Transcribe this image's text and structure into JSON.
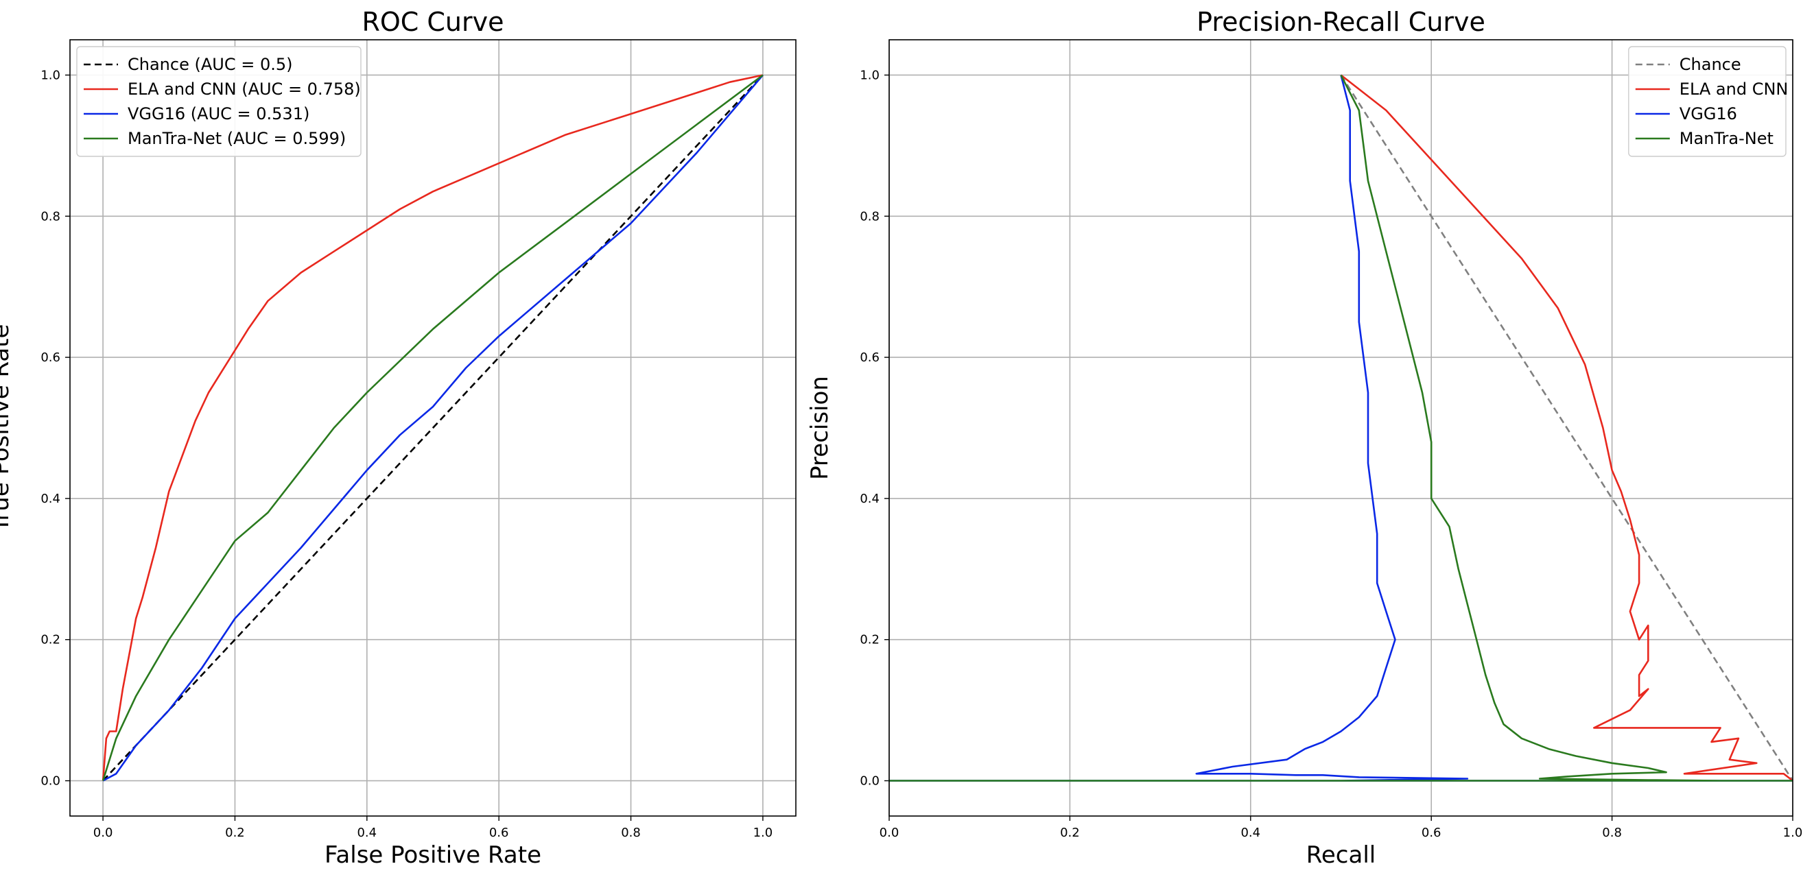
{
  "chart_data": [
    {
      "type": "line",
      "title": "ROC Curve",
      "xlabel": "False Positive Rate",
      "ylabel": "True Positive Rate",
      "xlim": [
        -0.05,
        1.05
      ],
      "ylim": [
        -0.05,
        1.05
      ],
      "xticks": [
        "0.0",
        "0.2",
        "0.4",
        "0.6",
        "0.8",
        "1.0"
      ],
      "yticks": [
        "0.0",
        "0.2",
        "0.4",
        "0.6",
        "0.8",
        "1.0"
      ],
      "grid": true,
      "legend_position": "top-left",
      "series": [
        {
          "name": "Chance (AUC = 0.5)",
          "color": "#000000",
          "dashed": true,
          "x": [
            0,
            1
          ],
          "y": [
            0,
            1
          ]
        },
        {
          "name": "ELA and CNN (AUC = 0.758)",
          "color": "#e8281e",
          "dashed": false,
          "x": [
            0,
            0.005,
            0.01,
            0.02,
            0.03,
            0.04,
            0.05,
            0.06,
            0.08,
            0.1,
            0.12,
            0.14,
            0.16,
            0.18,
            0.2,
            0.22,
            0.25,
            0.3,
            0.35,
            0.4,
            0.45,
            0.5,
            0.55,
            0.6,
            0.7,
            0.8,
            0.9,
            0.95,
            1.0
          ],
          "y": [
            0,
            0.06,
            0.07,
            0.07,
            0.13,
            0.18,
            0.23,
            0.26,
            0.33,
            0.41,
            0.46,
            0.51,
            0.55,
            0.58,
            0.61,
            0.64,
            0.68,
            0.72,
            0.75,
            0.78,
            0.81,
            0.835,
            0.855,
            0.875,
            0.915,
            0.945,
            0.975,
            0.99,
            1.0
          ]
        },
        {
          "name": "VGG16 (AUC = 0.531)",
          "color": "#0a28e6",
          "dashed": false,
          "x": [
            0,
            0.02,
            0.05,
            0.1,
            0.15,
            0.2,
            0.3,
            0.4,
            0.45,
            0.5,
            0.55,
            0.6,
            0.7,
            0.8,
            0.9,
            1.0
          ],
          "y": [
            0,
            0.01,
            0.05,
            0.1,
            0.16,
            0.23,
            0.33,
            0.44,
            0.49,
            0.53,
            0.585,
            0.63,
            0.71,
            0.79,
            0.89,
            1.0
          ]
        },
        {
          "name": "ManTra-Net (AUC = 0.599)",
          "color": "#2a7a1e",
          "dashed": false,
          "x": [
            0,
            0.02,
            0.05,
            0.1,
            0.15,
            0.2,
            0.25,
            0.3,
            0.35,
            0.4,
            0.5,
            0.6,
            0.7,
            0.8,
            0.9,
            1.0
          ],
          "y": [
            0,
            0.06,
            0.12,
            0.2,
            0.27,
            0.34,
            0.38,
            0.44,
            0.5,
            0.55,
            0.64,
            0.72,
            0.79,
            0.86,
            0.93,
            1.0
          ]
        }
      ]
    },
    {
      "type": "line",
      "title": "Precision-Recall Curve",
      "xlabel": "Recall",
      "ylabel": "Precision",
      "xlim": [
        0.0,
        1.0
      ],
      "ylim": [
        -0.05,
        1.05
      ],
      "xticks": [
        "0.0",
        "0.2",
        "0.4",
        "0.6",
        "0.8",
        "1.0"
      ],
      "yticks": [
        "0.0",
        "0.2",
        "0.4",
        "0.6",
        "0.8",
        "1.0"
      ],
      "grid": true,
      "legend_position": "top-right",
      "series": [
        {
          "name": "Chance",
          "color": "#808080",
          "dashed": true,
          "x": [
            0.5,
            1.0
          ],
          "y": [
            1.0,
            0.0
          ]
        },
        {
          "name": "ELA and CNN",
          "color": "#e8281e",
          "dashed": false,
          "x": [
            0.5,
            0.52,
            0.55,
            0.6,
            0.65,
            0.7,
            0.74,
            0.77,
            0.79,
            0.8,
            0.81,
            0.82,
            0.83,
            0.83,
            0.82,
            0.83,
            0.84,
            0.84,
            0.83,
            0.83,
            0.84,
            0.82,
            0.78,
            0.92,
            0.91,
            0.94,
            0.93,
            0.96,
            0.88,
            0.99,
            1.0
          ],
          "y": [
            1.0,
            0.98,
            0.95,
            0.88,
            0.81,
            0.74,
            0.67,
            0.59,
            0.5,
            0.44,
            0.41,
            0.37,
            0.32,
            0.28,
            0.24,
            0.2,
            0.22,
            0.17,
            0.15,
            0.12,
            0.13,
            0.1,
            0.075,
            0.075,
            0.055,
            0.06,
            0.03,
            0.025,
            0.01,
            0.01,
            0.0
          ]
        },
        {
          "name": "VGG16",
          "color": "#0a28e6",
          "dashed": false,
          "x": [
            0.5,
            0.51,
            0.51,
            0.52,
            0.52,
            0.53,
            0.53,
            0.54,
            0.54,
            0.55,
            0.56,
            0.55,
            0.54,
            0.52,
            0.5,
            0.48,
            0.46,
            0.44,
            0.38,
            0.34,
            0.4,
            0.45,
            0.48,
            0.52,
            0.64,
            0.5,
            0.0,
            1.0
          ],
          "y": [
            1.0,
            0.95,
            0.85,
            0.75,
            0.65,
            0.55,
            0.45,
            0.35,
            0.28,
            0.24,
            0.2,
            0.16,
            0.12,
            0.09,
            0.07,
            0.055,
            0.045,
            0.03,
            0.02,
            0.01,
            0.01,
            0.008,
            0.008,
            0.005,
            0.003,
            0.0,
            0.0,
            0.0
          ]
        },
        {
          "name": "ManTra-Net",
          "color": "#2a7a1e",
          "dashed": false,
          "x": [
            0.5,
            0.52,
            0.53,
            0.55,
            0.57,
            0.59,
            0.6,
            0.6,
            0.62,
            0.63,
            0.64,
            0.65,
            0.66,
            0.67,
            0.68,
            0.7,
            0.73,
            0.76,
            0.8,
            0.84,
            0.86,
            0.8,
            0.75,
            0.72,
            0.78,
            0.84,
            0.92,
            0.0,
            1.0
          ],
          "y": [
            1.0,
            0.95,
            0.85,
            0.75,
            0.65,
            0.55,
            0.48,
            0.4,
            0.36,
            0.3,
            0.25,
            0.2,
            0.15,
            0.11,
            0.08,
            0.06,
            0.045,
            0.035,
            0.025,
            0.018,
            0.012,
            0.01,
            0.006,
            0.003,
            0.002,
            0.001,
            0.0,
            0.0,
            0.0
          ]
        }
      ]
    }
  ]
}
